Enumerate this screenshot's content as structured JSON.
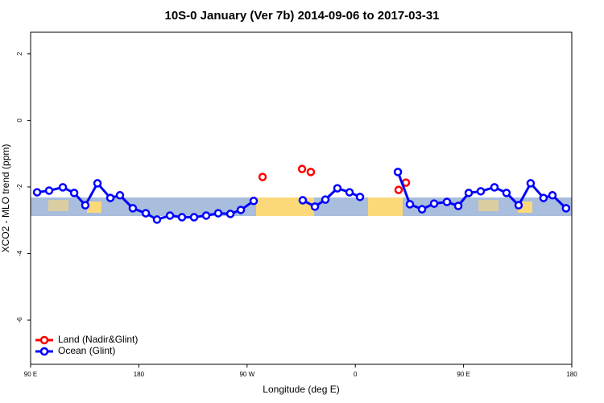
{
  "chart_data": {
    "type": "scatter",
    "title": "10S-0 January (Ver 7b)   2014-09-06 to 2017-03-31",
    "x_label": "Longitude (deg E)",
    "y_label": "XCO2 - MLO trend (ppm)",
    "xlim": [
      90,
      540
    ],
    "ylim": [
      -7.33,
      2.65
    ],
    "xticks": [
      {
        "value": 90,
        "label": "90 E"
      },
      180,
      {
        "value": 270,
        "label": "90 W"
      },
      {
        "value": 360,
        "label": "0"
      },
      {
        "value": 450,
        "label": "90 E"
      },
      {
        "value": 540,
        "label": "180"
      }
    ],
    "yticks": [
      2,
      0,
      -2,
      -4,
      -6
    ],
    "legend": "bottomleft",
    "series": [
      {
        "name": "Land (Nadir&Glint)",
        "color": "#ff0000",
        "line": false,
        "x": [
          282.9,
          315.7,
          323.0,
          396.0,
          402.1
        ],
        "values": [
          -1.7,
          -1.46,
          -1.55,
          -2.09,
          -1.87
        ]
      },
      {
        "name": "Ocean (Glint)",
        "color": "#0000ff",
        "line": true,
        "x": [
          95.4,
          105.4,
          116.8,
          126.2,
          135.5,
          145.6,
          156.3,
          164.3,
          175.0,
          185.8,
          195.1,
          205.9,
          215.9,
          225.9,
          236.0,
          246.0,
          256.1,
          264.8,
          275.5,
          null,
          316.3,
          326.4,
          335.1,
          345.1,
          355.2,
          363.9,
          null,
          395.4,
          405.4,
          415.5,
          425.5,
          436.2,
          445.6,
          454.3,
          464.3,
          475.7,
          485.7,
          495.8,
          505.8,
          516.5,
          523.9,
          535.2
        ],
        "values": [
          -2.16,
          -2.11,
          -2.01,
          -2.18,
          -2.55,
          -1.89,
          -2.33,
          -2.25,
          -2.64,
          -2.79,
          -2.98,
          -2.86,
          -2.91,
          -2.91,
          -2.86,
          -2.79,
          -2.81,
          -2.69,
          -2.42,
          null,
          -2.4,
          -2.59,
          -2.38,
          -2.04,
          -2.16,
          -2.3,
          null,
          -1.55,
          -2.52,
          -2.67,
          -2.5,
          -2.45,
          -2.57,
          -2.18,
          -2.13,
          -2.01,
          -2.18,
          -2.55,
          -1.89,
          -2.33,
          -2.25,
          -2.64
        ]
      }
    ]
  }
}
